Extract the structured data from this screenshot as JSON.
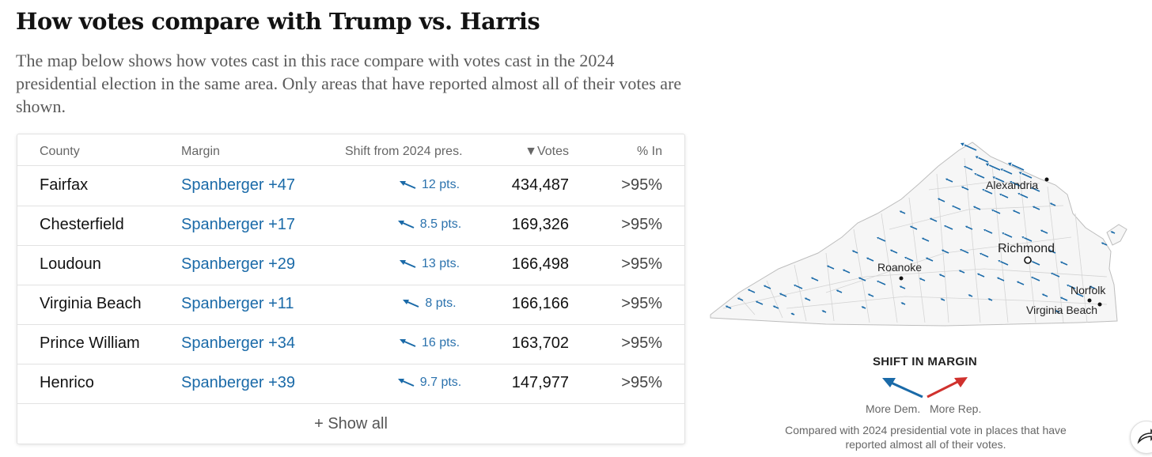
{
  "title": "How votes compare with Trump vs. Harris",
  "description": "The map below shows how votes cast in this race compare with votes cast in the 2024 presidential election in the same area. Only areas that have reported almost all of their votes are shown.",
  "table": {
    "headers": {
      "county": "County",
      "margin": "Margin",
      "shift": "Shift from 2024 pres.",
      "votes": "▼Votes",
      "pct_in": "% In"
    },
    "rows": [
      {
        "county": "Fairfax",
        "margin": "Spanberger +47",
        "shift": "12 pts.",
        "votes": "434,487",
        "pct_in": ">95%"
      },
      {
        "county": "Chesterfield",
        "margin": "Spanberger +17",
        "shift": "8.5 pts.",
        "votes": "169,326",
        "pct_in": ">95%"
      },
      {
        "county": "Loudoun",
        "margin": "Spanberger +29",
        "shift": "13 pts.",
        "votes": "166,498",
        "pct_in": ">95%"
      },
      {
        "county": "Virginia Beach",
        "margin": "Spanberger +11",
        "shift": "8 pts.",
        "votes": "166,166",
        "pct_in": ">95%"
      },
      {
        "county": "Prince William",
        "margin": "Spanberger +34",
        "shift": "16 pts.",
        "votes": "163,702",
        "pct_in": ">95%"
      },
      {
        "county": "Henrico",
        "margin": "Spanberger +39",
        "shift": "9.7 pts.",
        "votes": "147,977",
        "pct_in": ">95%"
      }
    ],
    "show_all_label": "+ Show all"
  },
  "map": {
    "cities": {
      "alexandria": "Alexandria",
      "richmond": "Richmond",
      "roanoke": "Roanoke",
      "norfolk": "Norfolk",
      "virginia_beach": "Virginia Beach"
    }
  },
  "legend": {
    "title": "SHIFT IN MARGIN",
    "dem_label": "More Dem.",
    "rep_label": "More Rep.",
    "note": "Compared with 2024 presidential vote in places that have reported almost all of their votes.",
    "dem_color": "#1a6aa8",
    "rep_color": "#d0312d"
  },
  "share_icon": "share-arrow-icon"
}
